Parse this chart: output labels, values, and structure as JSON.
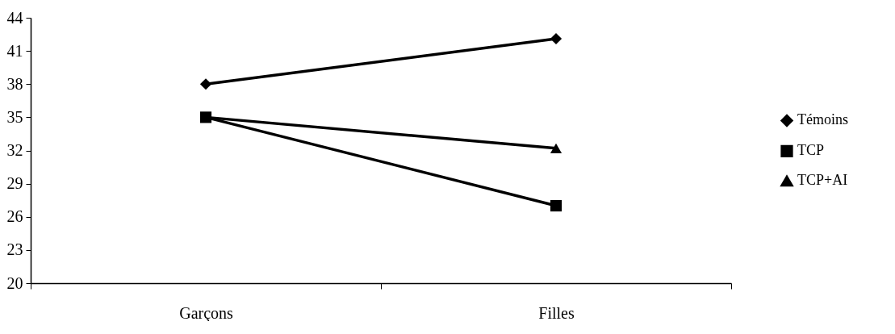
{
  "chart_data": {
    "type": "line",
    "categories": [
      "Garçons",
      "Filles"
    ],
    "series": [
      {
        "name": "Témoins",
        "color": "#000000",
        "marker": "diamond",
        "values": [
          38,
          42.1
        ]
      },
      {
        "name": "TCP",
        "color": "#000000",
        "marker": "square",
        "values": [
          35,
          27
        ]
      },
      {
        "name": "TCP+AI",
        "color": "#000000",
        "marker": "triangle",
        "values": [
          35,
          32.2
        ]
      }
    ],
    "ylim": [
      20,
      44
    ],
    "yticks": [
      20,
      23,
      26,
      29,
      32,
      35,
      38,
      41,
      44
    ],
    "grid": false,
    "legend": "right",
    "line_style": "solid"
  }
}
